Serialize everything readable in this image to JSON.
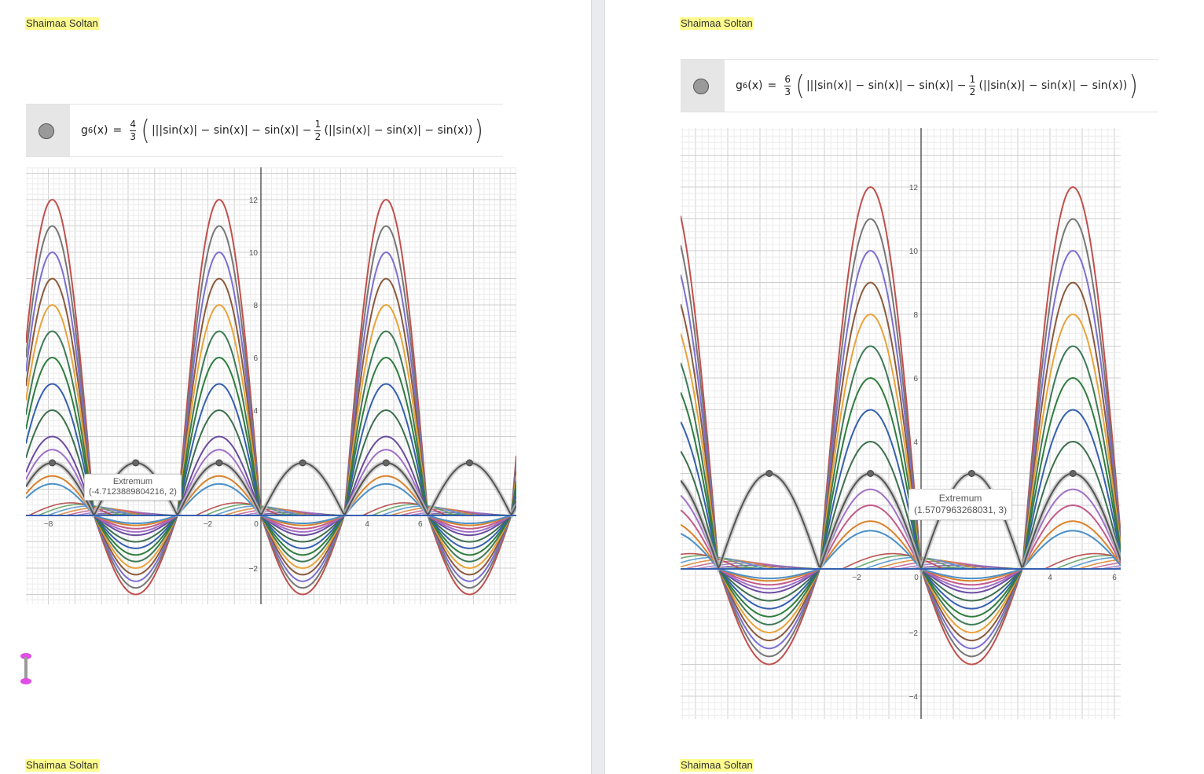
{
  "author": "Shaimaa Soltan",
  "left": {
    "formula": {
      "name": "g",
      "index": "6",
      "arg": "(x)",
      "equals": "=",
      "coef_num": "4",
      "coef_den": "3",
      "part1": "|||sin(x)| − sin(x)| − sin(x)| −",
      "half_num": "1",
      "half_den": "2",
      "part2": "(||sin(x)| − sin(x)| − sin(x))"
    },
    "tooltip": {
      "title": "Extremum",
      "value": "(-4.7123889804216, 2)"
    },
    "x_ticks": [
      "−8",
      "−2",
      "0",
      "4",
      "6"
    ],
    "y_ticks": [
      "12",
      "10",
      "8",
      "6",
      "4",
      "−2"
    ]
  },
  "right": {
    "formula": {
      "name": "g",
      "index": "6",
      "arg": "(x)",
      "equals": "=",
      "coef_num": "6",
      "coef_den": "3",
      "part1": "|||sin(x)| − sin(x)| − sin(x)| −",
      "half_num": "1",
      "half_den": "2",
      "part2": "(||sin(x)| − sin(x)| − sin(x))"
    },
    "tooltip": {
      "title": "Extremum",
      "value": "(1.5707963268031, 3)"
    },
    "x_ticks": [
      "−2",
      "0",
      "4",
      "6"
    ],
    "y_ticks": [
      "12",
      "10",
      "8",
      "6",
      "4",
      "−2",
      "−4"
    ]
  },
  "colors": {
    "curves": [
      "#c0504d",
      "#777777",
      "#7b6fd0",
      "#8b5a3c",
      "#e8a33a",
      "#3e7a57",
      "#2f7d3e",
      "#3560b0",
      "#3d6f4e",
      "#6b4ca0",
      "#a070c8",
      "#c45a8a",
      "#d9822b",
      "#4a90c8",
      "#5a9e5a",
      "#b03a3a"
    ],
    "highlight": "#555555",
    "axis": "#333333",
    "grid_major": "#cfcfcf",
    "grid_minor": "#ececec"
  }
}
